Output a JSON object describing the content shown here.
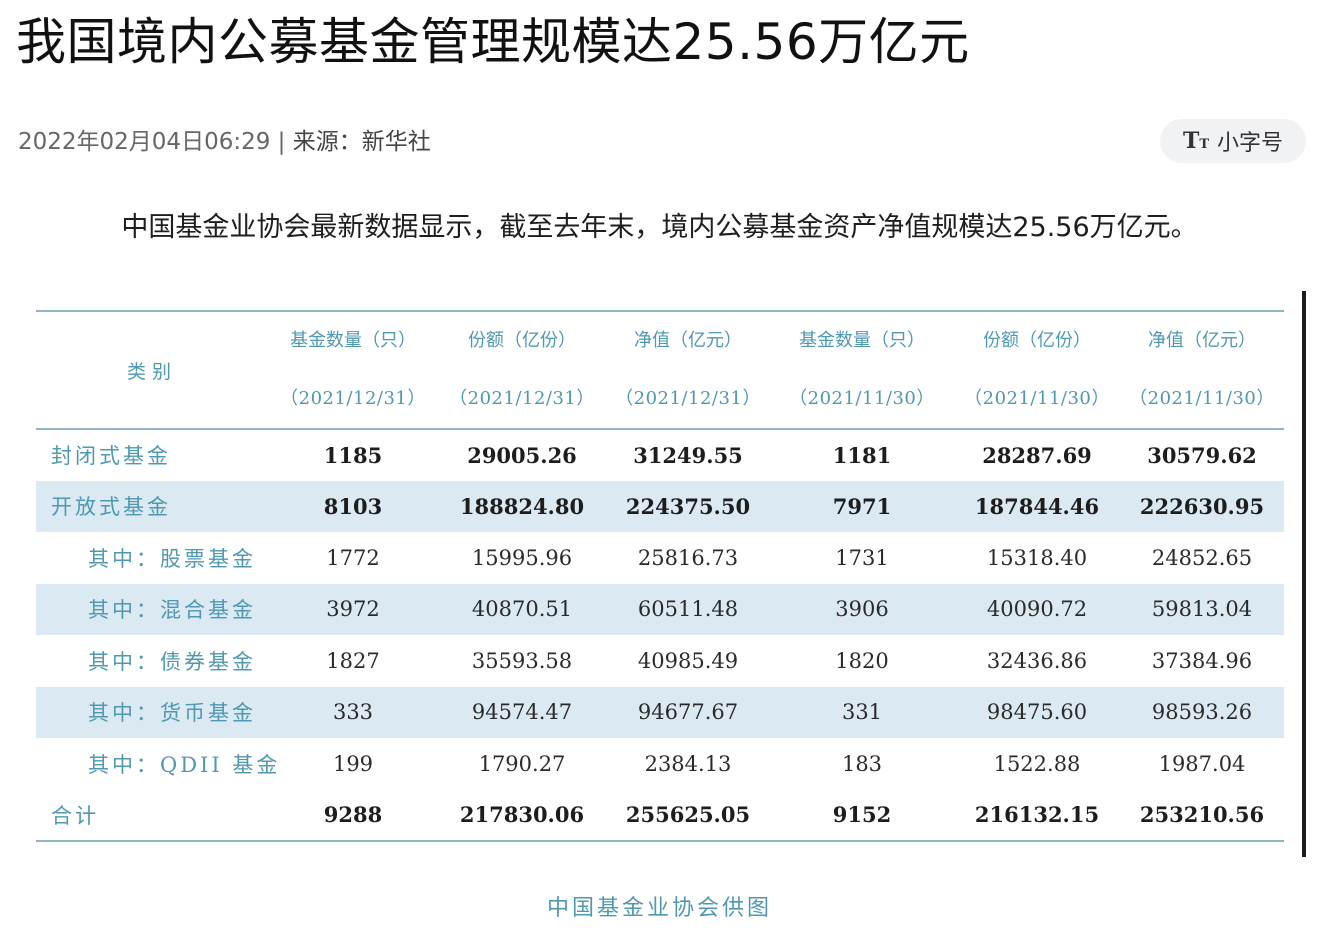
{
  "article": {
    "title": "我国境内公募基金管理规模达25.56万亿元",
    "datetime": "2022年02月04日06:29",
    "separator": "|",
    "source_label": "来源：",
    "source_name": "新华社",
    "font_toggle": {
      "icon": "text-size-icon",
      "icon_big": "T",
      "icon_small": "T",
      "label": "小字号"
    },
    "lead": "中国基金业协会最新数据显示，截至去年末，境内公募基金资产净值规模达25.56万亿元。",
    "image_caption": "中国基金业协会供图"
  },
  "table": {
    "category_header": "类别",
    "columns": [
      {
        "title": "基金数量（只）",
        "date": "（2021/12/31）"
      },
      {
        "title": "份额（亿份）",
        "date": "（2021/12/31）"
      },
      {
        "title": "净值（亿元）",
        "date": "（2021/12/31）"
      },
      {
        "title": "基金数量（只）",
        "date": "（2021/11/30）"
      },
      {
        "title": "份额（亿份）",
        "date": "（2021/11/30）"
      },
      {
        "title": "净值（亿元）",
        "date": "（2021/11/30）"
      }
    ],
    "rows": [
      {
        "name": "封闭式基金",
        "values": [
          "1185",
          "29005.26",
          "31249.55",
          "1181",
          "28287.69",
          "30579.62"
        ]
      },
      {
        "name": "开放式基金",
        "values": [
          "8103",
          "188824.80",
          "224375.50",
          "7971",
          "187844.46",
          "222630.95"
        ]
      },
      {
        "name": "其中：股票基金",
        "values": [
          "1772",
          "15995.96",
          "25816.73",
          "1731",
          "15318.40",
          "24852.65"
        ]
      },
      {
        "name": "其中：混合基金",
        "values": [
          "3972",
          "40870.51",
          "60511.48",
          "3906",
          "40090.72",
          "59813.04"
        ]
      },
      {
        "name": "其中：债券基金",
        "values": [
          "1827",
          "35593.58",
          "40985.49",
          "1820",
          "32436.86",
          "37384.96"
        ]
      },
      {
        "name": "其中：货币基金",
        "values": [
          "333",
          "94574.47",
          "94677.67",
          "331",
          "98475.60",
          "98593.26"
        ]
      },
      {
        "name": "其中：QDII 基金",
        "values": [
          "199",
          "1790.27",
          "2384.13",
          "183",
          "1522.88",
          "1987.04"
        ]
      },
      {
        "name": "合计",
        "values": [
          "9288",
          "217830.06",
          "255625.05",
          "9152",
          "216132.15",
          "253210.56"
        ]
      }
    ]
  },
  "colors": {
    "table_accent": "#4f98b0",
    "row_shade": "#dbe9f2",
    "rule": "#8fb6c4",
    "toggle_bg": "#f1f2f4"
  }
}
